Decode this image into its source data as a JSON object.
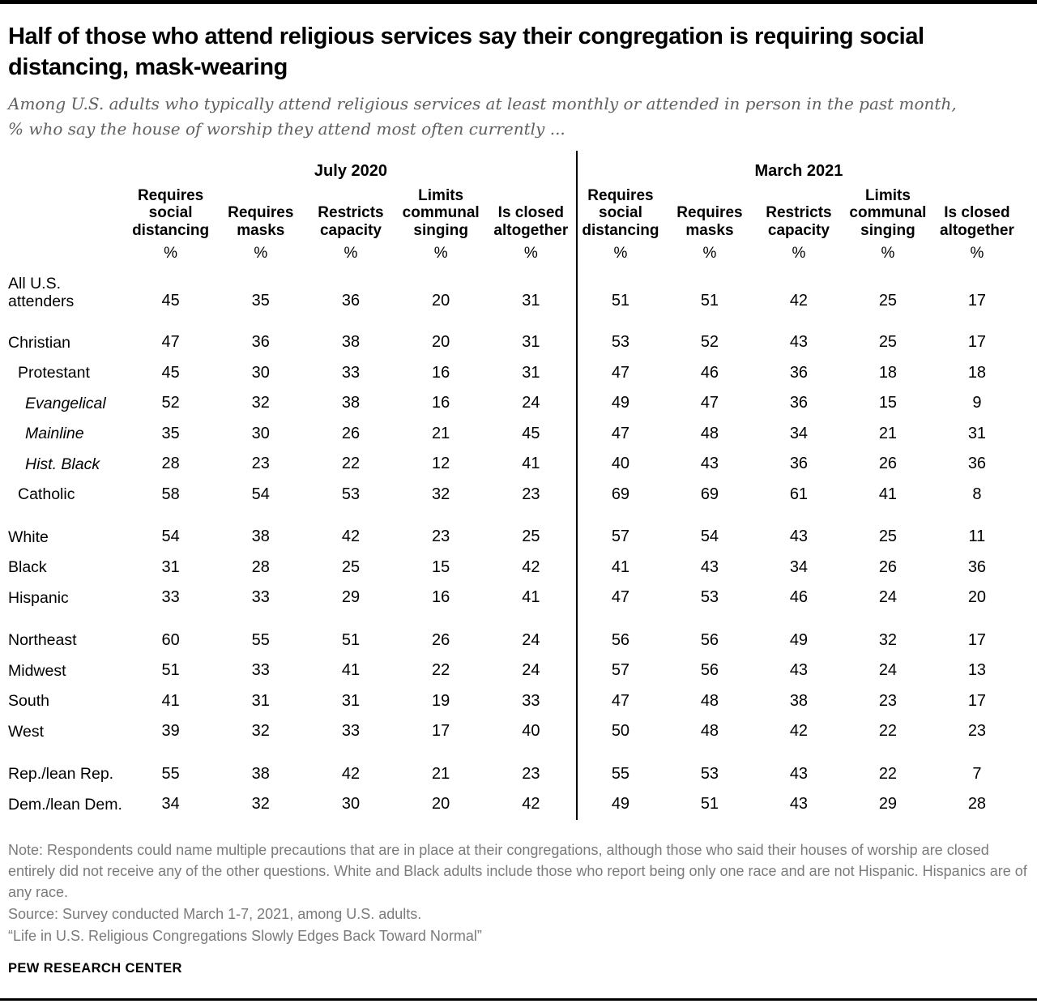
{
  "header": {
    "title": "Half of those who attend religious services say their congregation is requiring social\ndistancing, mask-wearing",
    "subtitle": "Among U.S. adults who typically attend religious services at least monthly or attended in person in the past month,\n% who say the house of worship they attend most often currently ..."
  },
  "chart_data": {
    "type": "table",
    "title": "Half of those who attend religious services say their congregation is requiring social distancing, mask-wearing",
    "subtitle": "Among U.S. adults who typically attend religious services at least monthly or attended in person in the past month, % who say the house of worship they attend most often currently ...",
    "unit": "%",
    "column_groups": [
      {
        "label": "July 2020",
        "columns": [
          "Requires\nsocial\ndistancing",
          "Requires\nmasks",
          "Restricts\ncapacity",
          "Limits\ncommunal\nsinging",
          "Is closed\naltogether"
        ]
      },
      {
        "label": "March 2021",
        "columns": [
          "Requires\nsocial\ndistancing",
          "Requires\nmasks",
          "Restricts\ncapacity",
          "Limits\ncommunal\nsinging",
          "Is closed\naltogether"
        ]
      }
    ],
    "rows": [
      {
        "label": "All U.S.\nattenders",
        "indent": 0,
        "italic": false,
        "spacer": false,
        "tall": true,
        "july": [
          45,
          35,
          36,
          20,
          31
        ],
        "march": [
          51,
          51,
          42,
          25,
          17
        ]
      },
      {
        "label": "Christian",
        "indent": 0,
        "italic": false,
        "spacer": true,
        "tall": false,
        "july": [
          47,
          36,
          38,
          20,
          31
        ],
        "march": [
          53,
          52,
          43,
          25,
          17
        ]
      },
      {
        "label": "Protestant",
        "indent": 1,
        "italic": false,
        "spacer": false,
        "tall": false,
        "july": [
          45,
          30,
          33,
          16,
          31
        ],
        "march": [
          47,
          46,
          36,
          18,
          18
        ]
      },
      {
        "label": "Evangelical",
        "indent": 2,
        "italic": true,
        "spacer": false,
        "tall": false,
        "july": [
          52,
          32,
          38,
          16,
          24
        ],
        "march": [
          49,
          47,
          36,
          15,
          9
        ]
      },
      {
        "label": "Mainline",
        "indent": 2,
        "italic": true,
        "spacer": false,
        "tall": false,
        "july": [
          35,
          30,
          26,
          21,
          45
        ],
        "march": [
          47,
          48,
          34,
          21,
          31
        ]
      },
      {
        "label": "Hist. Black",
        "indent": 2,
        "italic": true,
        "spacer": false,
        "tall": false,
        "july": [
          28,
          23,
          22,
          12,
          41
        ],
        "march": [
          40,
          43,
          36,
          26,
          36
        ]
      },
      {
        "label": "Catholic",
        "indent": 1,
        "italic": false,
        "spacer": false,
        "tall": false,
        "july": [
          58,
          54,
          53,
          32,
          23
        ],
        "march": [
          69,
          69,
          61,
          41,
          8
        ]
      },
      {
        "label": "White",
        "indent": 0,
        "italic": false,
        "spacer": true,
        "tall": false,
        "july": [
          54,
          38,
          42,
          23,
          25
        ],
        "march": [
          57,
          54,
          43,
          25,
          11
        ]
      },
      {
        "label": "Black",
        "indent": 0,
        "italic": false,
        "spacer": false,
        "tall": false,
        "july": [
          31,
          28,
          25,
          15,
          42
        ],
        "march": [
          41,
          43,
          34,
          26,
          36
        ]
      },
      {
        "label": "Hispanic",
        "indent": 0,
        "italic": false,
        "spacer": false,
        "tall": false,
        "july": [
          33,
          33,
          29,
          16,
          41
        ],
        "march": [
          47,
          53,
          46,
          24,
          20
        ]
      },
      {
        "label": "Northeast",
        "indent": 0,
        "italic": false,
        "spacer": true,
        "tall": false,
        "july": [
          60,
          55,
          51,
          26,
          24
        ],
        "march": [
          56,
          56,
          49,
          32,
          17
        ]
      },
      {
        "label": "Midwest",
        "indent": 0,
        "italic": false,
        "spacer": false,
        "tall": false,
        "july": [
          51,
          33,
          41,
          22,
          24
        ],
        "march": [
          57,
          56,
          43,
          24,
          13
        ]
      },
      {
        "label": "South",
        "indent": 0,
        "italic": false,
        "spacer": false,
        "tall": false,
        "july": [
          41,
          31,
          31,
          19,
          33
        ],
        "march": [
          47,
          48,
          38,
          23,
          17
        ]
      },
      {
        "label": "West",
        "indent": 0,
        "italic": false,
        "spacer": false,
        "tall": false,
        "july": [
          39,
          32,
          33,
          17,
          40
        ],
        "march": [
          50,
          48,
          42,
          22,
          23
        ]
      },
      {
        "label": "Rep./lean Rep.",
        "indent": 0,
        "italic": false,
        "spacer": true,
        "tall": false,
        "july": [
          55,
          38,
          42,
          21,
          23
        ],
        "march": [
          55,
          53,
          43,
          22,
          7
        ]
      },
      {
        "label": "Dem./lean Dem.",
        "indent": 0,
        "italic": false,
        "spacer": false,
        "tall": false,
        "july": [
          34,
          32,
          30,
          20,
          42
        ],
        "march": [
          49,
          51,
          43,
          29,
          28
        ]
      }
    ]
  },
  "footer": {
    "note": "Note: Respondents could name multiple precautions that are in place at their congregations, although those who said their houses of worship are closed entirely did not receive any of the other questions. White and Black adults include those who report being only one race and are not Hispanic. Hispanics are of any race.",
    "source": "Source: Survey conducted March 1-7, 2021, among U.S. adults.",
    "citation": "“Life in U.S. Religious Congregations Slowly Edges Back Toward Normal”",
    "brand": "PEW RESEARCH CENTER"
  },
  "colors": {
    "text": "#000000",
    "subtitle_gray": "#5f5f5f",
    "note_gray": "#7b7b7b",
    "rule_black": "#000000"
  }
}
